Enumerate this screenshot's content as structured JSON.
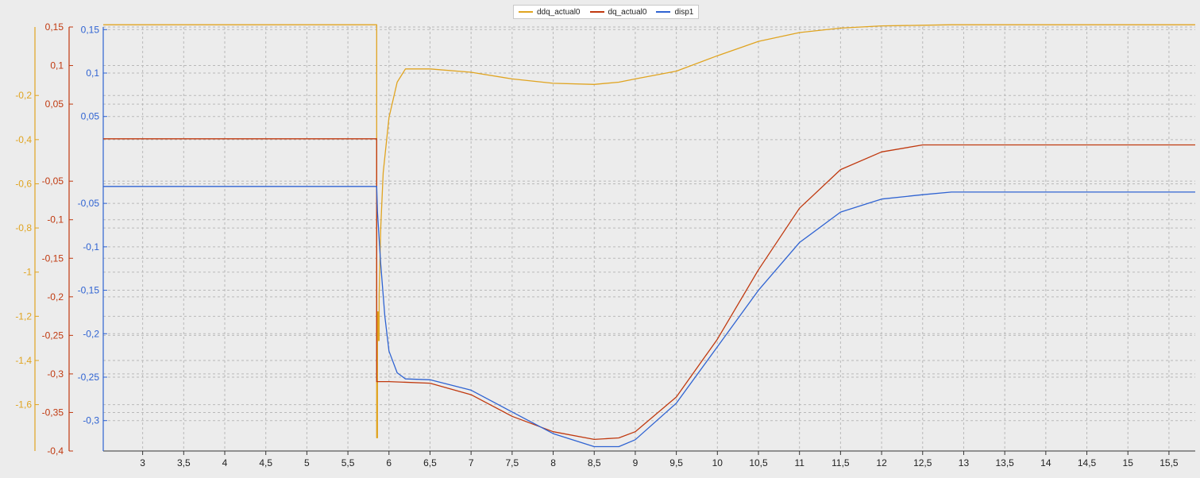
{
  "chart_data": {
    "type": "line",
    "legend": {
      "placement": "top-center",
      "entries": [
        {
          "name": "ddq_actual0",
          "color": "#e0a420"
        },
        {
          "name": "dq_actual0",
          "color": "#c0390f"
        },
        {
          "name": "disp1",
          "color": "#2f63d2"
        }
      ]
    },
    "grid": true,
    "x_axis": {
      "xlim": [
        2.52,
        15.82
      ],
      "ticks": [
        "3",
        "3,5",
        "4",
        "4,5",
        "5",
        "5,5",
        "6",
        "6,5",
        "7",
        "7,5",
        "8",
        "8,5",
        "9",
        "9,5",
        "10",
        "10,5",
        "11",
        "11,5",
        "12",
        "12,5",
        "13",
        "13,5",
        "14",
        "14,5",
        "15",
        "15,5"
      ],
      "tick_values": [
        3,
        3.5,
        4,
        4.5,
        5,
        5.5,
        6,
        6.5,
        7,
        7.5,
        8,
        8.5,
        9,
        9.5,
        10,
        10.5,
        11,
        11.5,
        12,
        12.5,
        13,
        13.5,
        14,
        14.5,
        15,
        15.5
      ]
    },
    "y_axes": [
      {
        "series": "ddq_actual0",
        "color": "#e0a420",
        "ylim": [
          -1.81,
          0.11
        ],
        "ticks": [
          "-0,2",
          "-0,4",
          "-0,6",
          "-0,8",
          "-1",
          "-1,2",
          "-1,4",
          "-1,6"
        ],
        "tick_values": [
          -0.2,
          -0.4,
          -0.6,
          -0.8,
          -1.0,
          -1.2,
          -1.4,
          -1.6
        ]
      },
      {
        "series": "dq_actual0",
        "color": "#c0390f",
        "ylim": [
          -0.4,
          0.15
        ],
        "ticks": [
          "0,15",
          "0,1",
          "0,05",
          "-0,05",
          "-0,1",
          "-0,15",
          "-0,2",
          "-0,25",
          "-0,3",
          "-0,35",
          "-0,4"
        ],
        "tick_values": [
          0.15,
          0.1,
          0.05,
          -0.05,
          -0.1,
          -0.15,
          -0.2,
          -0.25,
          -0.3,
          -0.35,
          -0.4
        ]
      },
      {
        "series": "disp1",
        "color": "#2f63d2",
        "ylim": [
          -0.335,
          0.153
        ],
        "ticks": [
          "0,15",
          "0,1",
          "0,05",
          "-0,05",
          "-0,1",
          "-0,15",
          "-0,2",
          "-0,25",
          "-0,3"
        ],
        "tick_values": [
          0.15,
          0.1,
          0.05,
          -0.05,
          -0.1,
          -0.15,
          -0.2,
          -0.25,
          -0.3
        ]
      }
    ],
    "series": [
      {
        "name": "ddq_actual0",
        "color": "#e0a420",
        "axis": 0,
        "x": [
          2.52,
          5.85,
          5.85,
          5.86,
          5.86,
          5.87,
          5.87,
          5.88,
          5.88,
          5.9,
          5.93,
          6.0,
          6.1,
          6.2,
          6.5,
          7.0,
          7.5,
          8.0,
          8.5,
          8.8,
          9.0,
          9.5,
          10.0,
          10.5,
          11.0,
          11.5,
          12.0,
          12.5,
          12.85,
          13.0,
          15.82
        ],
        "y": [
          0.12,
          0.12,
          -1.75,
          -1.75,
          -1.18,
          -1.18,
          -1.31,
          -1.31,
          -1.1,
          -0.8,
          -0.55,
          -0.3,
          -0.14,
          -0.08,
          -0.08,
          -0.095,
          -0.125,
          -0.145,
          -0.15,
          -0.14,
          -0.125,
          -0.09,
          -0.02,
          0.045,
          0.085,
          0.105,
          0.115,
          0.118,
          0.12,
          0.12,
          0.12
        ]
      },
      {
        "name": "dq_actual0",
        "color": "#c0390f",
        "axis": 1,
        "x": [
          2.52,
          5.85,
          5.85,
          6.0,
          6.5,
          7.0,
          7.5,
          8.0,
          8.5,
          8.8,
          9.0,
          9.5,
          10.0,
          10.5,
          11.0,
          11.5,
          12.0,
          12.5,
          12.85,
          15.82
        ],
        "y": [
          0.005,
          0.005,
          -0.31,
          -0.31,
          -0.312,
          -0.327,
          -0.355,
          -0.375,
          -0.385,
          -0.383,
          -0.375,
          -0.33,
          -0.255,
          -0.165,
          -0.085,
          -0.035,
          -0.012,
          -0.003,
          -0.003,
          -0.003
        ]
      },
      {
        "name": "disp1",
        "color": "#2f63d2",
        "axis": 2,
        "x": [
          2.52,
          5.85,
          5.86,
          5.9,
          5.95,
          6.0,
          6.1,
          6.2,
          6.5,
          7.0,
          7.5,
          8.0,
          8.5,
          8.8,
          9.0,
          9.5,
          10.0,
          10.5,
          11.0,
          11.5,
          12.0,
          12.5,
          12.85,
          15.82
        ],
        "y": [
          -0.0305,
          -0.0305,
          -0.06,
          -0.12,
          -0.18,
          -0.22,
          -0.245,
          -0.252,
          -0.253,
          -0.265,
          -0.29,
          -0.315,
          -0.33,
          -0.33,
          -0.322,
          -0.28,
          -0.215,
          -0.15,
          -0.095,
          -0.06,
          -0.045,
          -0.04,
          -0.037,
          -0.037
        ]
      }
    ]
  }
}
